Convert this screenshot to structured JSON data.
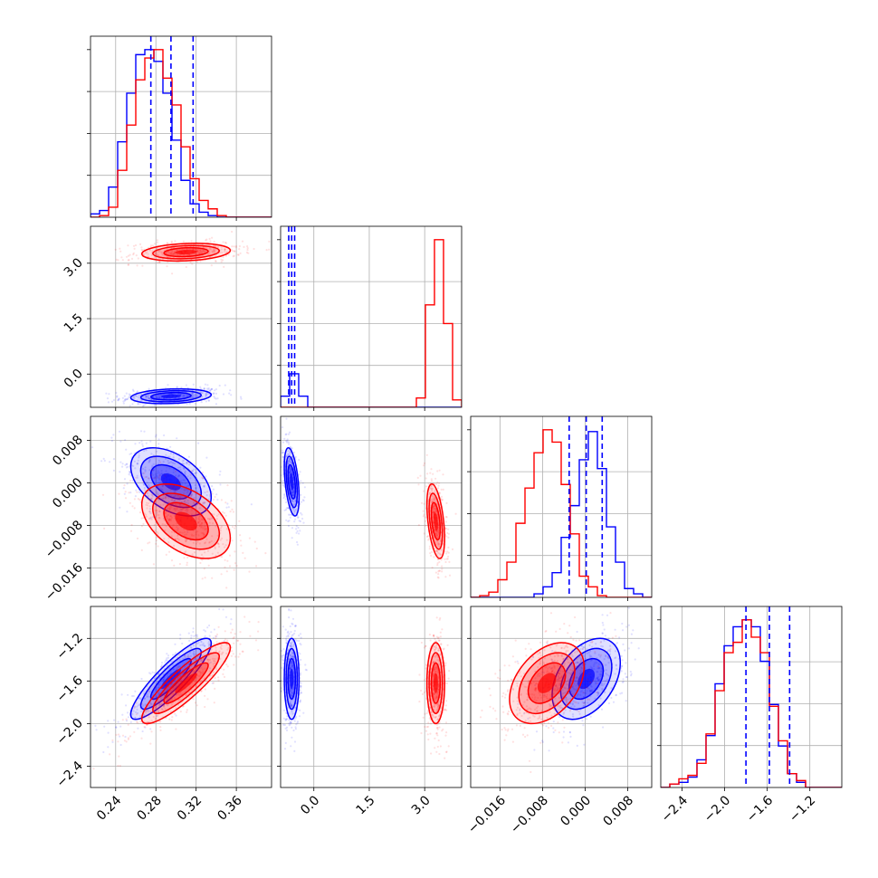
{
  "chart_data": {
    "type": "corner",
    "grid": true,
    "parameters": [
      {
        "ticks": [
          0.24,
          0.28,
          0.32,
          0.36
        ],
        "tick_labels": [
          "0.24",
          "0.28",
          "0.32",
          "0.36"
        ],
        "range": [
          0.215,
          0.395
        ]
      },
      {
        "ticks": [
          0.0,
          1.5,
          3.0
        ],
        "tick_labels": [
          "0.0",
          "1.5",
          "3.0"
        ],
        "range": [
          -0.9,
          4.0
        ]
      },
      {
        "ticks": [
          -0.016,
          -0.008,
          0.0,
          0.008
        ],
        "tick_labels": [
          "−0.016",
          "−0.008",
          "0.000",
          "0.008"
        ],
        "range": [
          -0.0215,
          0.0125
        ]
      },
      {
        "ticks": [
          -2.4,
          -2.0,
          -1.6,
          -1.2
        ],
        "tick_labels": [
          "−2.4",
          "−2.0",
          "−1.6",
          "−1.2"
        ],
        "range": [
          -2.6,
          -0.9
        ]
      }
    ],
    "series": [
      {
        "color": "#0000ff",
        "histograms": [
          [
            0.02,
            0.04,
            0.18,
            0.45,
            0.74,
            0.97,
            1.0,
            0.93,
            0.74,
            0.46,
            0.22,
            0.08,
            0.03,
            0.01,
            0.0,
            0.0,
            0.0,
            0.0,
            0.0,
            0.0
          ],
          [
            0.06,
            0.18,
            0.06,
            0.0,
            0.0,
            0.0,
            0.0,
            0.0,
            0.0,
            0.0,
            0.0,
            0.0,
            0.0,
            0.0,
            0.0,
            0.0,
            0.0,
            0.0,
            0.0,
            0.0
          ],
          [
            0.0,
            0.0,
            0.0,
            0.0,
            0.0,
            0.0,
            0.0,
            0.02,
            0.06,
            0.14,
            0.34,
            0.52,
            0.78,
            0.94,
            0.73,
            0.4,
            0.2,
            0.05,
            0.02,
            0.0
          ],
          [
            0.0,
            0.02,
            0.03,
            0.06,
            0.16,
            0.3,
            0.6,
            0.82,
            0.93,
            0.97,
            0.93,
            0.73,
            0.48,
            0.24,
            0.08,
            0.03,
            0.0,
            0.0,
            0.0,
            0.0
          ]
        ],
        "centers": [
          0.295,
          -0.6,
          0.0002,
          -1.58
        ],
        "sd": [
          0.02,
          0.1,
          0.0032,
          0.19
        ]
      },
      {
        "color": "#ff0000",
        "histograms": [
          [
            0.0,
            0.01,
            0.06,
            0.28,
            0.55,
            0.82,
            0.95,
            1.0,
            0.83,
            0.67,
            0.42,
            0.23,
            0.1,
            0.05,
            0.01,
            0.0,
            0.0,
            0.0,
            0.0,
            0.0
          ],
          [
            0.0,
            0.0,
            0.0,
            0.0,
            0.0,
            0.0,
            0.0,
            0.0,
            0.0,
            0.0,
            0.0,
            0.0,
            0.0,
            0.0,
            0.0,
            0.05,
            0.55,
            0.9,
            0.45,
            0.04
          ],
          [
            0.0,
            0.01,
            0.03,
            0.1,
            0.2,
            0.42,
            0.62,
            0.82,
            0.95,
            0.88,
            0.64,
            0.36,
            0.12,
            0.06,
            0.01,
            0.0,
            0.0,
            0.0,
            0.0,
            0.0
          ],
          [
            0.0,
            0.02,
            0.05,
            0.07,
            0.14,
            0.31,
            0.56,
            0.78,
            0.84,
            0.97,
            0.87,
            0.78,
            0.47,
            0.27,
            0.08,
            0.04,
            0.0,
            0.0,
            0.0,
            0.0
          ]
        ],
        "centers": [
          0.31,
          3.3,
          -0.0072,
          -1.62
        ],
        "sd": [
          0.022,
          0.12,
          0.0035,
          0.19
        ]
      }
    ],
    "correlations": {
      "0-1": 0.2,
      "0-2": -0.45,
      "0-3": 0.88,
      "1-2": -0.45,
      "1-3": 0.0,
      "2-3": 0.4
    },
    "quantile_lines": {
      "color": "#0000ff",
      "style": "dashed",
      "values": [
        [
          0.275,
          0.295,
          0.317
        ],
        [
          -0.68,
          -0.6,
          -0.52
        ],
        [
          -0.003,
          0.0002,
          0.0032
        ],
        [
          -1.8,
          -1.58,
          -1.39
        ]
      ]
    }
  }
}
